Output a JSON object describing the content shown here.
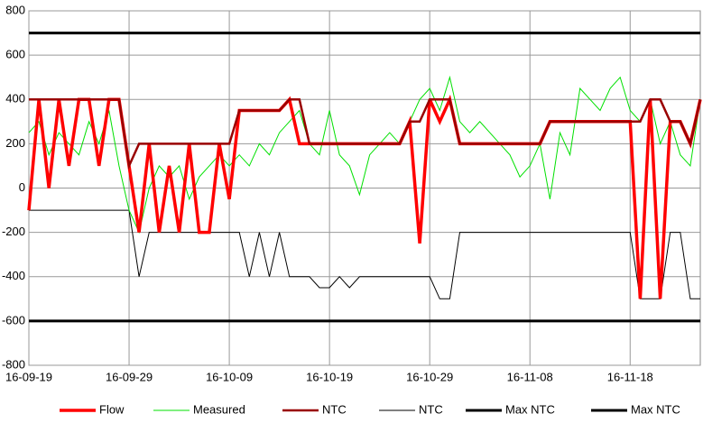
{
  "chart_data": {
    "type": "line",
    "x": [
      "16-09-19",
      "16-09-20",
      "16-09-21",
      "16-09-22",
      "16-09-23",
      "16-09-24",
      "16-09-25",
      "16-09-26",
      "16-09-27",
      "16-09-28",
      "16-09-29",
      "16-09-30",
      "16-10-01",
      "16-10-02",
      "16-10-03",
      "16-10-04",
      "16-10-05",
      "16-10-06",
      "16-10-07",
      "16-10-08",
      "16-10-09",
      "16-10-10",
      "16-10-11",
      "16-10-12",
      "16-10-13",
      "16-10-14",
      "16-10-15",
      "16-10-16",
      "16-10-17",
      "16-10-18",
      "16-10-19",
      "16-10-20",
      "16-10-21",
      "16-10-22",
      "16-10-23",
      "16-10-24",
      "16-10-25",
      "16-10-26",
      "16-10-27",
      "16-10-28",
      "16-10-29",
      "16-10-30",
      "16-10-31",
      "16-11-01",
      "16-11-02",
      "16-11-03",
      "16-11-04",
      "16-11-05",
      "16-11-06",
      "16-11-07",
      "16-11-08",
      "16-11-09",
      "16-11-10",
      "16-11-11",
      "16-11-12",
      "16-11-13",
      "16-11-14",
      "16-11-15",
      "16-11-16",
      "16-11-17",
      "16-11-18",
      "16-11-19",
      "16-11-20",
      "16-11-21",
      "16-11-22",
      "16-11-23",
      "16-11-24",
      "16-11-25"
    ],
    "series": [
      {
        "name": "Flow",
        "color": "#ff0000",
        "width": 3.5,
        "values": [
          -100,
          400,
          0,
          400,
          100,
          400,
          400,
          100,
          400,
          400,
          100,
          -200,
          200,
          -200,
          100,
          -200,
          200,
          -200,
          -200,
          200,
          -50,
          350,
          350,
          350,
          350,
          350,
          400,
          200,
          200,
          200,
          200,
          200,
          200,
          200,
          200,
          200,
          200,
          200,
          300,
          -250,
          400,
          300,
          400,
          200,
          200,
          200,
          200,
          200,
          200,
          200,
          200,
          200,
          300,
          300,
          300,
          300,
          300,
          300,
          300,
          300,
          300,
          -500,
          400,
          -500,
          300,
          300,
          200,
          400
        ]
      },
      {
        "name": "Measured",
        "color": "#00e000",
        "width": 1,
        "values": [
          250,
          300,
          150,
          250,
          200,
          150,
          300,
          200,
          350,
          100,
          -100,
          -200,
          0,
          100,
          50,
          100,
          -50,
          50,
          100,
          150,
          100,
          150,
          100,
          200,
          150,
          250,
          300,
          350,
          200,
          150,
          350,
          150,
          100,
          -30,
          150,
          200,
          250,
          200,
          300,
          400,
          450,
          350,
          500,
          300,
          250,
          300,
          250,
          200,
          150,
          50,
          100,
          200,
          -50,
          250,
          150,
          450,
          400,
          350,
          450,
          500,
          350,
          300,
          400,
          200,
          300,
          150,
          100,
          400
        ]
      },
      {
        "name": "NTC",
        "color": "#990000",
        "width": 2.5,
        "values": [
          400,
          400,
          400,
          400,
          400,
          400,
          400,
          400,
          400,
          400,
          100,
          200,
          200,
          200,
          200,
          200,
          200,
          200,
          200,
          200,
          200,
          350,
          350,
          350,
          350,
          350,
          400,
          400,
          200,
          200,
          200,
          200,
          200,
          200,
          200,
          200,
          200,
          200,
          300,
          300,
          400,
          400,
          400,
          200,
          200,
          200,
          200,
          200,
          200,
          200,
          200,
          200,
          300,
          300,
          300,
          300,
          300,
          300,
          300,
          300,
          300,
          300,
          400,
          400,
          300,
          300,
          200,
          400
        ]
      },
      {
        "name": "NTC",
        "color": "#000000",
        "width": 1,
        "values": [
          -100,
          -100,
          -100,
          -100,
          -100,
          -100,
          -100,
          -100,
          -100,
          -100,
          -100,
          -400,
          -200,
          -200,
          -200,
          -200,
          -200,
          -200,
          -200,
          -200,
          -200,
          -200,
          -400,
          -200,
          -400,
          -200,
          -400,
          -400,
          -400,
          -450,
          -450,
          -400,
          -450,
          -400,
          -400,
          -400,
          -400,
          -400,
          -400,
          -400,
          -400,
          -500,
          -500,
          -200,
          -200,
          -200,
          -200,
          -200,
          -200,
          -200,
          -200,
          -200,
          -200,
          -200,
          -200,
          -200,
          -200,
          -200,
          -200,
          -200,
          -200,
          -500,
          -500,
          -500,
          -200,
          -200,
          -500,
          -500
        ]
      },
      {
        "name": "Max NTC",
        "color": "#000000",
        "width": 3,
        "values": [
          700,
          700,
          700,
          700,
          700,
          700,
          700,
          700,
          700,
          700,
          700,
          700,
          700,
          700,
          700,
          700,
          700,
          700,
          700,
          700,
          700,
          700,
          700,
          700,
          700,
          700,
          700,
          700,
          700,
          700,
          700,
          700,
          700,
          700,
          700,
          700,
          700,
          700,
          700,
          700,
          700,
          700,
          700,
          700,
          700,
          700,
          700,
          700,
          700,
          700,
          700,
          700,
          700,
          700,
          700,
          700,
          700,
          700,
          700,
          700,
          700,
          700,
          700,
          700,
          700,
          700,
          700,
          700
        ]
      },
      {
        "name": "Max NTC",
        "color": "#000000",
        "width": 3,
        "values": [
          -600,
          -600,
          -600,
          -600,
          -600,
          -600,
          -600,
          -600,
          -600,
          -600,
          -600,
          -600,
          -600,
          -600,
          -600,
          -600,
          -600,
          -600,
          -600,
          -600,
          -600,
          -600,
          -600,
          -600,
          -600,
          -600,
          -600,
          -600,
          -600,
          -600,
          -600,
          -600,
          -600,
          -600,
          -600,
          -600,
          -600,
          -600,
          -600,
          -600,
          -600,
          -600,
          -600,
          -600,
          -600,
          -600,
          -600,
          -600,
          -600,
          -600,
          -600,
          -600,
          -600,
          -600,
          -600,
          -600,
          -600,
          -600,
          -600,
          -600,
          -600,
          -600,
          -600,
          -600,
          -600,
          -600,
          -600,
          -600
        ]
      }
    ],
    "xlim": [
      "16-09-19",
      "16-11-25"
    ],
    "xticks": [
      "16-09-19",
      "16-09-29",
      "16-10-09",
      "16-10-19",
      "16-10-29",
      "16-11-08",
      "16-11-18"
    ],
    "ylim": [
      -800,
      800
    ],
    "yticks": [
      -800,
      -600,
      -400,
      -200,
      0,
      200,
      400,
      600,
      800
    ],
    "grid": true
  }
}
